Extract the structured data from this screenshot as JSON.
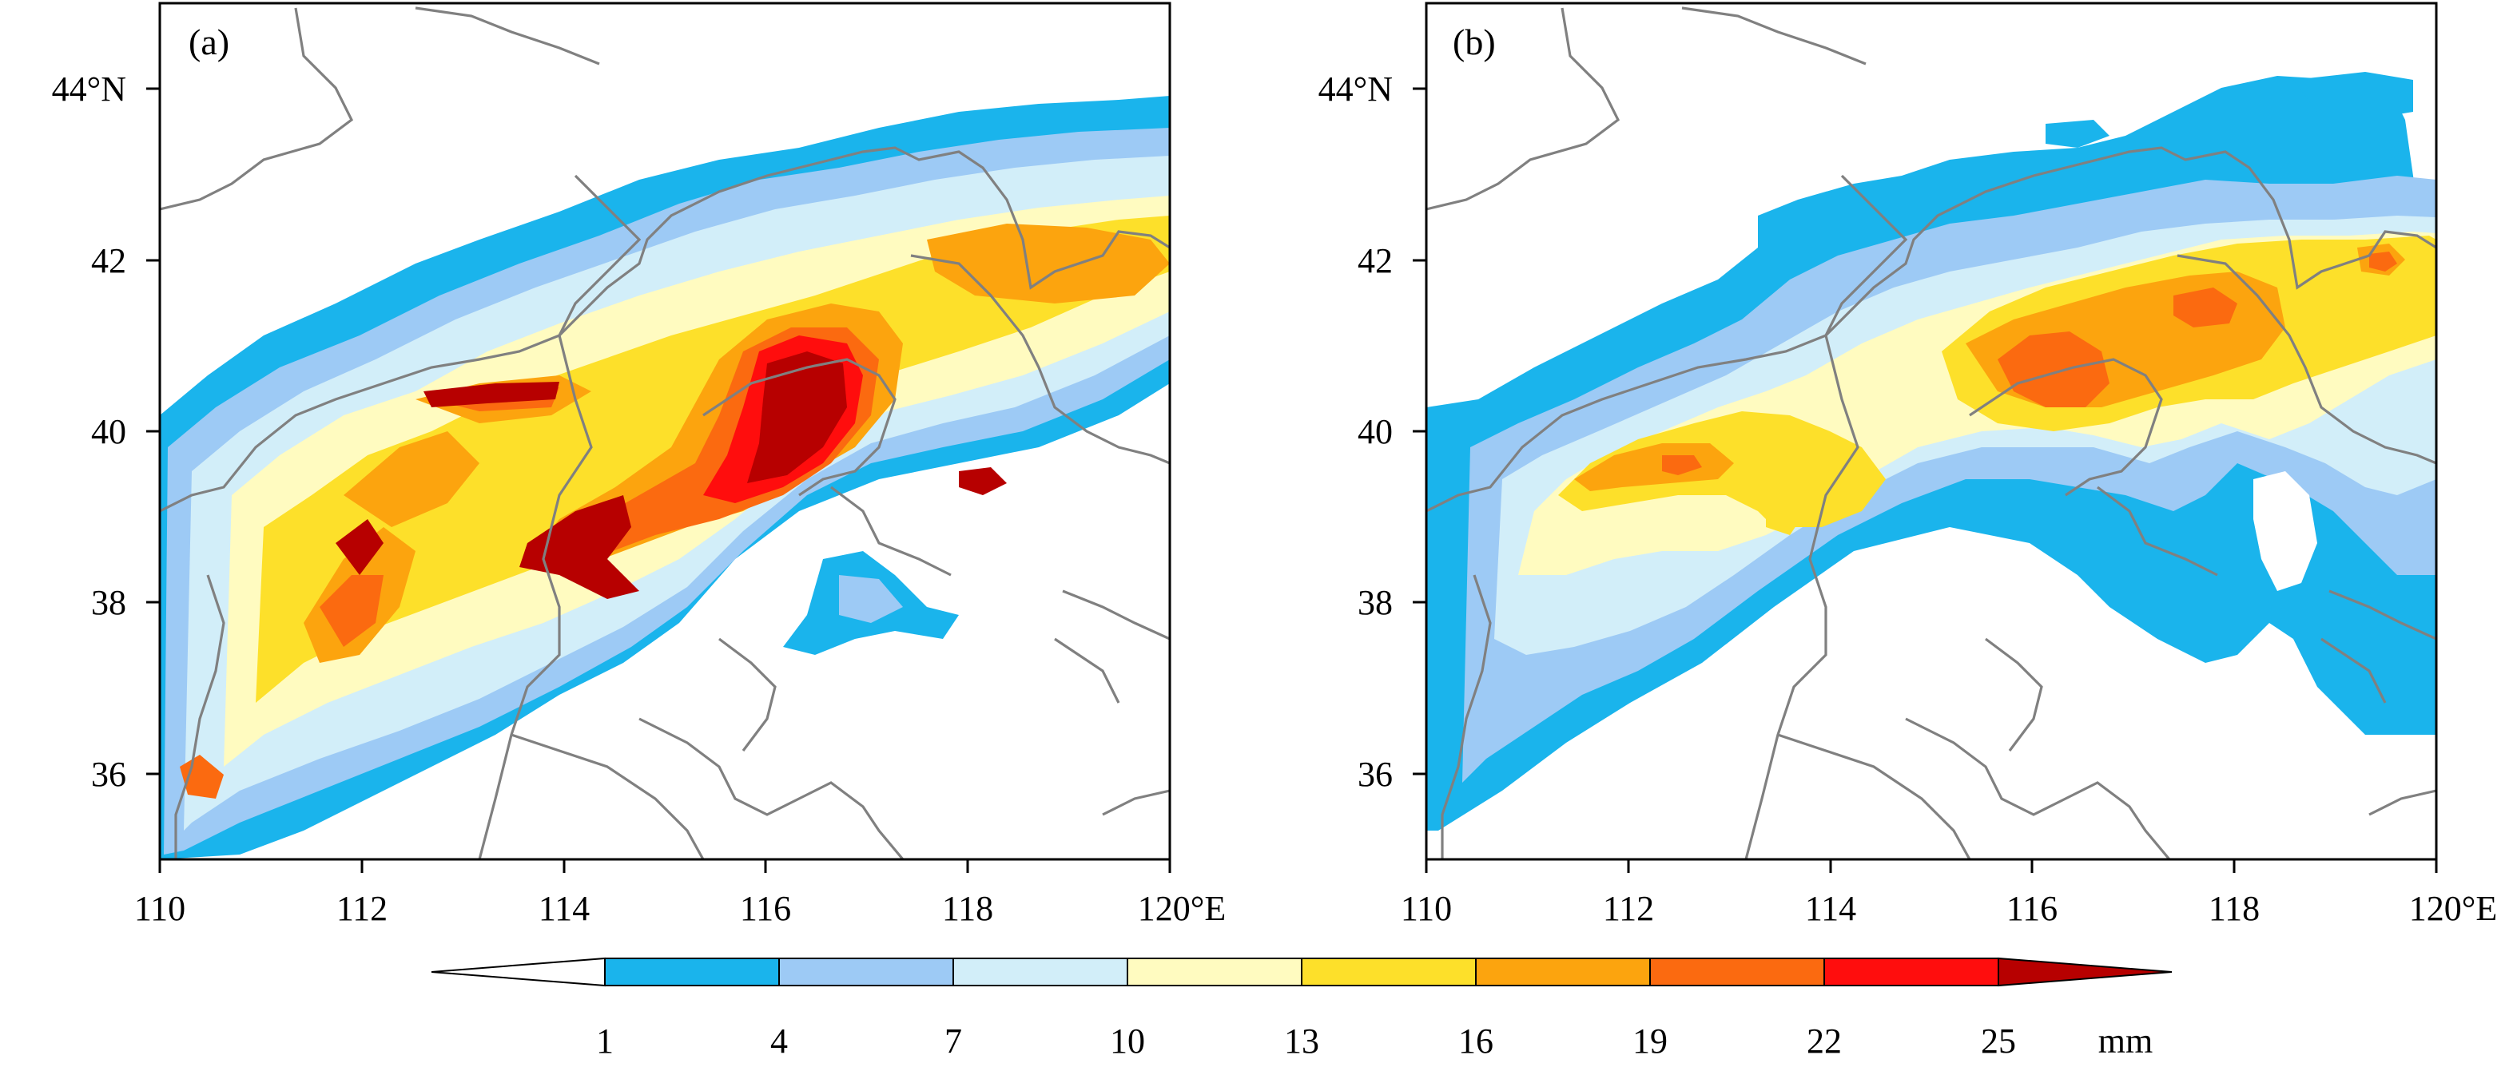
{
  "panels": [
    {
      "label": "(a)",
      "x_tick_labels": [
        "110",
        "112",
        "114",
        "116",
        "118",
        "120°E"
      ],
      "y_tick_labels": [
        "36",
        "38",
        "40",
        "42",
        "44°N"
      ]
    },
    {
      "label": "(b)",
      "x_tick_labels": [
        "110",
        "112",
        "114",
        "116",
        "118",
        "120°E"
      ],
      "y_tick_labels": [
        "36",
        "38",
        "40",
        "42",
        "44°N"
      ]
    }
  ],
  "map_extent": {
    "lon_range": [
      110,
      120
    ],
    "lat_range": [
      35,
      45
    ]
  },
  "colorbar": {
    "tick_labels": [
      "1",
      "4",
      "7",
      "10",
      "13",
      "16",
      "19",
      "22",
      "25"
    ],
    "unit": "mm",
    "colors": [
      "#ffffff",
      "#1ab4ec",
      "#9dcaf5",
      "#d2eef9",
      "#fffbc0",
      "#fde02a",
      "#fca40e",
      "#fb6a10",
      "#ff0d0d",
      "#b70000"
    ]
  },
  "colors": {
    "boundary": "#808080",
    "axes": "#000000"
  }
}
